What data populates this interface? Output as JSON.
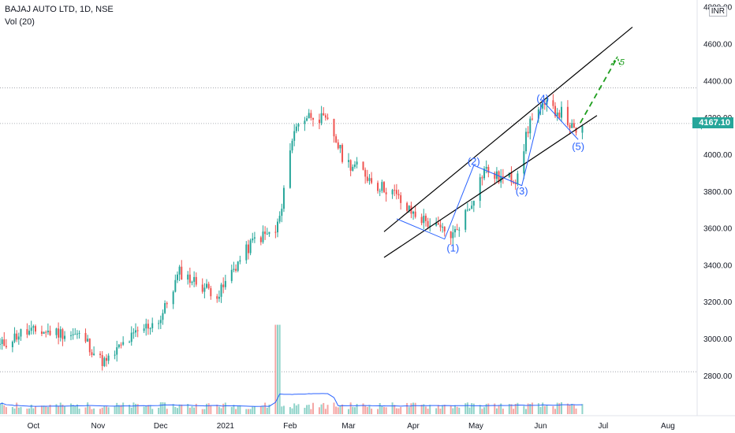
{
  "header": {
    "symbol_line": "BAJAJ AUTO LTD, 1D, NSE",
    "volume_line": "Vol (20)",
    "currency": "INR"
  },
  "last_price_label": "4167.10",
  "colors": {
    "up": "#26a69a",
    "down": "#ef5350",
    "up_volume": "#8fd3c9",
    "down_volume": "#f4a6a4",
    "volume_ma": "#2962ff",
    "wave": "#2962ff",
    "channel": "#000000",
    "projection": "#1e9e1e",
    "last_price": "#26a69a",
    "grid_dotted": "#9598a1"
  },
  "chart_data": {
    "type": "candlestick",
    "title": "BAJAJ AUTO LTD, 1D, NSE",
    "ylim": [
      2650,
      4820
    ],
    "y_ticks": [
      "2800.00",
      "3000.00",
      "3200.00",
      "3400.00",
      "3600.00",
      "3800.00",
      "4000.00",
      "4200.00",
      "4400.00",
      "4600.00",
      "4800.00"
    ],
    "x_ticks": [
      "Oct",
      "Nov",
      "Dec",
      "2021",
      "Feb",
      "Mar",
      "Apr",
      "May",
      "Jun",
      "Jul",
      "Aug"
    ],
    "x_range": [
      "2020-09-15",
      "2021-08-15"
    ],
    "horizontal_levels": [
      4360,
      4167.1,
      2820
    ],
    "last_price": 4167.1,
    "series": [
      {
        "name": "BAJAJ AUTO LTD",
        "type": "price",
        "points": [
          [
            "2020-09-15",
            2960
          ],
          [
            "2020-09-25",
            3030
          ],
          [
            "2020-10-05",
            3040
          ],
          [
            "2020-10-15",
            3030
          ],
          [
            "2020-10-25",
            3010
          ],
          [
            "2020-11-01",
            2890
          ],
          [
            "2020-11-05",
            2870
          ],
          [
            "2020-11-12",
            2960
          ],
          [
            "2020-11-22",
            3050
          ],
          [
            "2020-12-01",
            3110
          ],
          [
            "2020-12-10",
            3360
          ],
          [
            "2020-12-20",
            3290
          ],
          [
            "2020-12-29",
            3240
          ],
          [
            "2021-01-05",
            3380
          ],
          [
            "2021-01-15",
            3540
          ],
          [
            "2021-01-25",
            3580
          ],
          [
            "2021-01-28",
            3700
          ],
          [
            "2021-02-01",
            4050
          ],
          [
            "2021-02-05",
            4180
          ],
          [
            "2021-02-12",
            4220
          ],
          [
            "2021-02-20",
            4160
          ],
          [
            "2021-02-27",
            3960
          ],
          [
            "2021-03-05",
            3930
          ],
          [
            "2021-03-15",
            3830
          ],
          [
            "2021-03-22",
            3800
          ],
          [
            "2021-03-29",
            3700
          ],
          [
            "2021-04-05",
            3650
          ],
          [
            "2021-04-12",
            3600
          ],
          [
            "2021-04-20",
            3560
          ],
          [
            "2021-04-28",
            3720
          ],
          [
            "2021-05-05",
            3920
          ],
          [
            "2021-05-12",
            3870
          ],
          [
            "2021-05-20",
            3870
          ],
          [
            "2021-05-28",
            4220
          ],
          [
            "2021-06-04",
            4260
          ],
          [
            "2021-06-12",
            4220
          ],
          [
            "2021-06-18",
            4100
          ],
          [
            "2021-06-21",
            4167.1
          ]
        ]
      },
      {
        "name": "Vol (20)",
        "type": "volume",
        "scale": "relative",
        "spike_dates": [
          "2021-01-26"
        ]
      }
    ],
    "annotations": {
      "wave_labels": [
        {
          "text": "(1)",
          "x": "2021-04-20",
          "y": 3490
        },
        {
          "text": "(2)",
          "x": "2021-04-30",
          "y": 3960
        },
        {
          "text": "(3)",
          "x": "2021-05-23",
          "y": 3800
        },
        {
          "text": "(4)",
          "x": "2021-06-02",
          "y": 4300
        },
        {
          "text": "(5)",
          "x": "2021-06-19",
          "y": 4040
        }
      ],
      "wave_path": [
        [
          "2021-03-24",
          3650
        ],
        [
          "2021-04-16",
          3540
        ],
        [
          "2021-04-30",
          3940
        ],
        [
          "2021-05-23",
          3830
        ],
        [
          "2021-06-02",
          4290
        ],
        [
          "2021-06-19",
          4080
        ]
      ],
      "channel_upper": [
        [
          "2021-03-18",
          3580
        ],
        [
          "2021-07-15",
          4690
        ]
      ],
      "channel_lower": [
        [
          "2021-03-18",
          3440
        ],
        [
          "2021-06-28",
          4210
        ]
      ],
      "projection": [
        [
          "2021-06-20",
          4170
        ],
        [
          "2021-07-07",
          4510
        ]
      ],
      "projection_end_label": "5"
    }
  }
}
